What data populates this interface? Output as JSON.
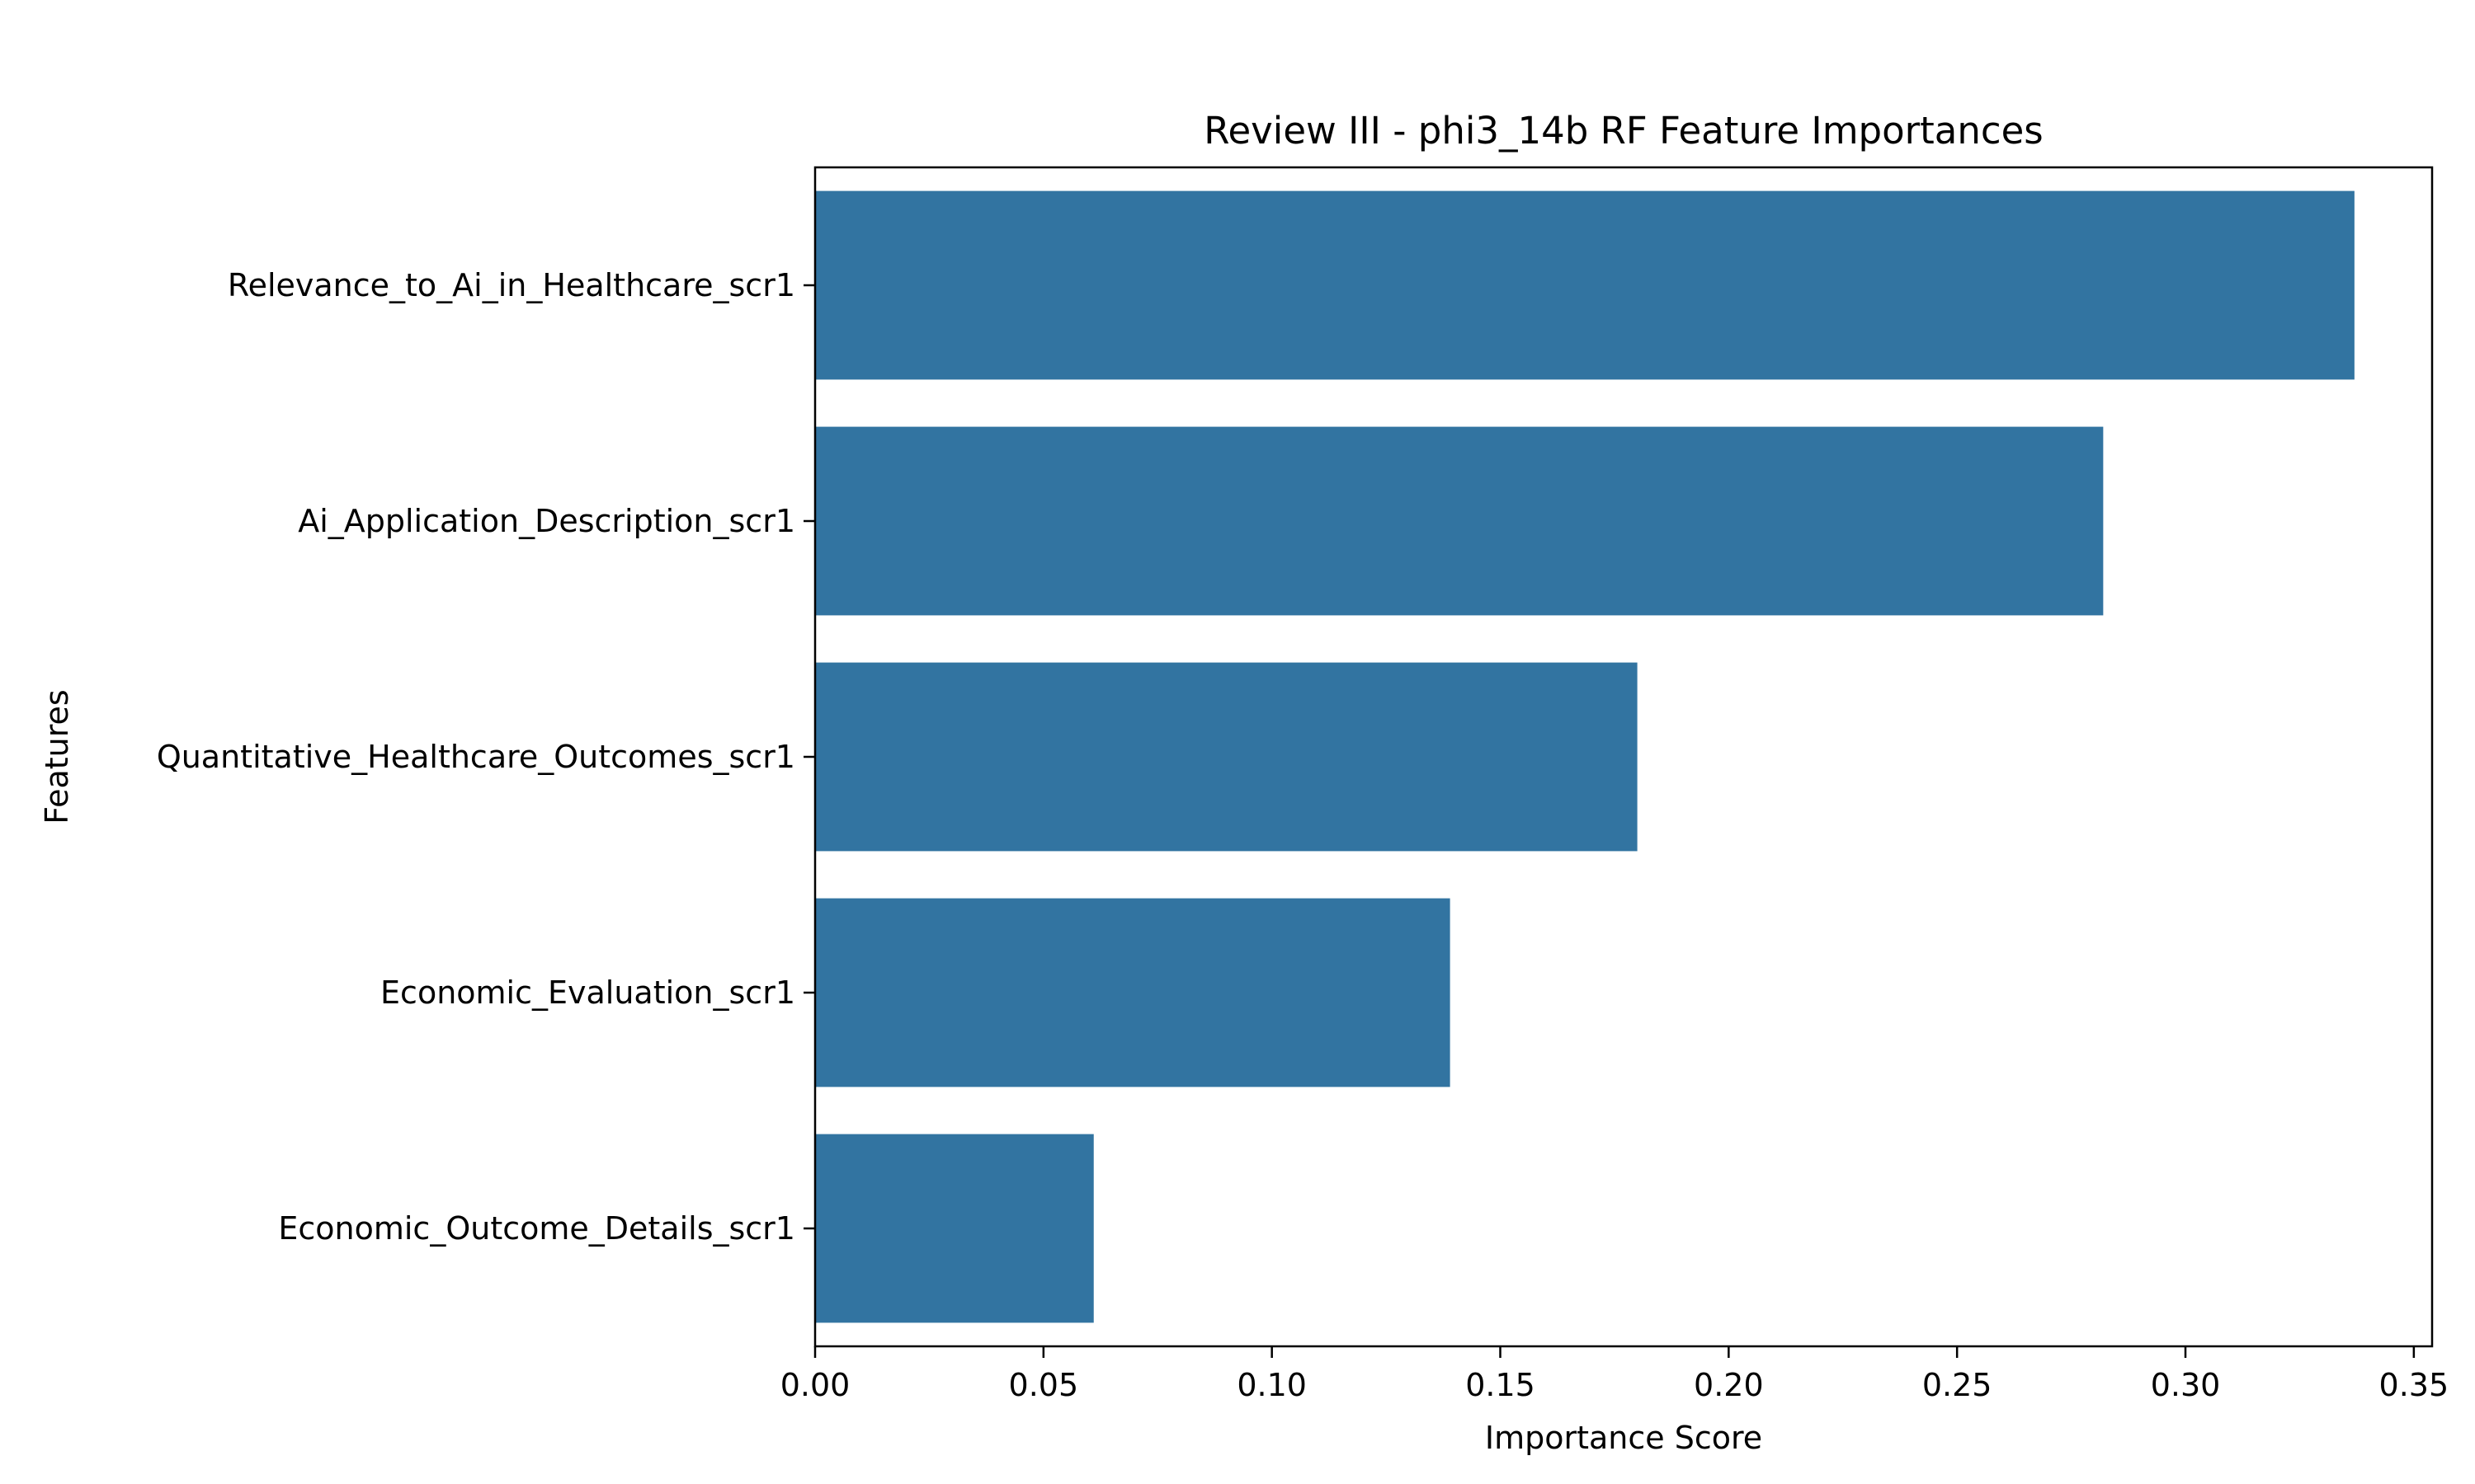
{
  "chart_data": {
    "type": "bar",
    "orientation": "horizontal",
    "title": "Review III - phi3_14b RF Feature Importances",
    "xlabel": "Importance Score",
    "ylabel": "Features",
    "categories": [
      "Relevance_to_Ai_in_Healthcare_scr1",
      "Ai_Application_Description_scr1",
      "Quantitative_Healthcare_Outcomes_scr1",
      "Economic_Evaluation_scr1",
      "Economic_Outcome_Details_scr1"
    ],
    "values": [
      0.337,
      0.282,
      0.18,
      0.139,
      0.061
    ],
    "xlim": [
      0,
      0.354
    ],
    "xticks": [
      0.0,
      0.05,
      0.1,
      0.15,
      0.2,
      0.25,
      0.3,
      0.35
    ],
    "xtick_labels": [
      "0.00",
      "0.05",
      "0.10",
      "0.15",
      "0.20",
      "0.25",
      "0.30",
      "0.35"
    ],
    "bar_color": "#3274a1",
    "grid": false,
    "legend": "none"
  }
}
